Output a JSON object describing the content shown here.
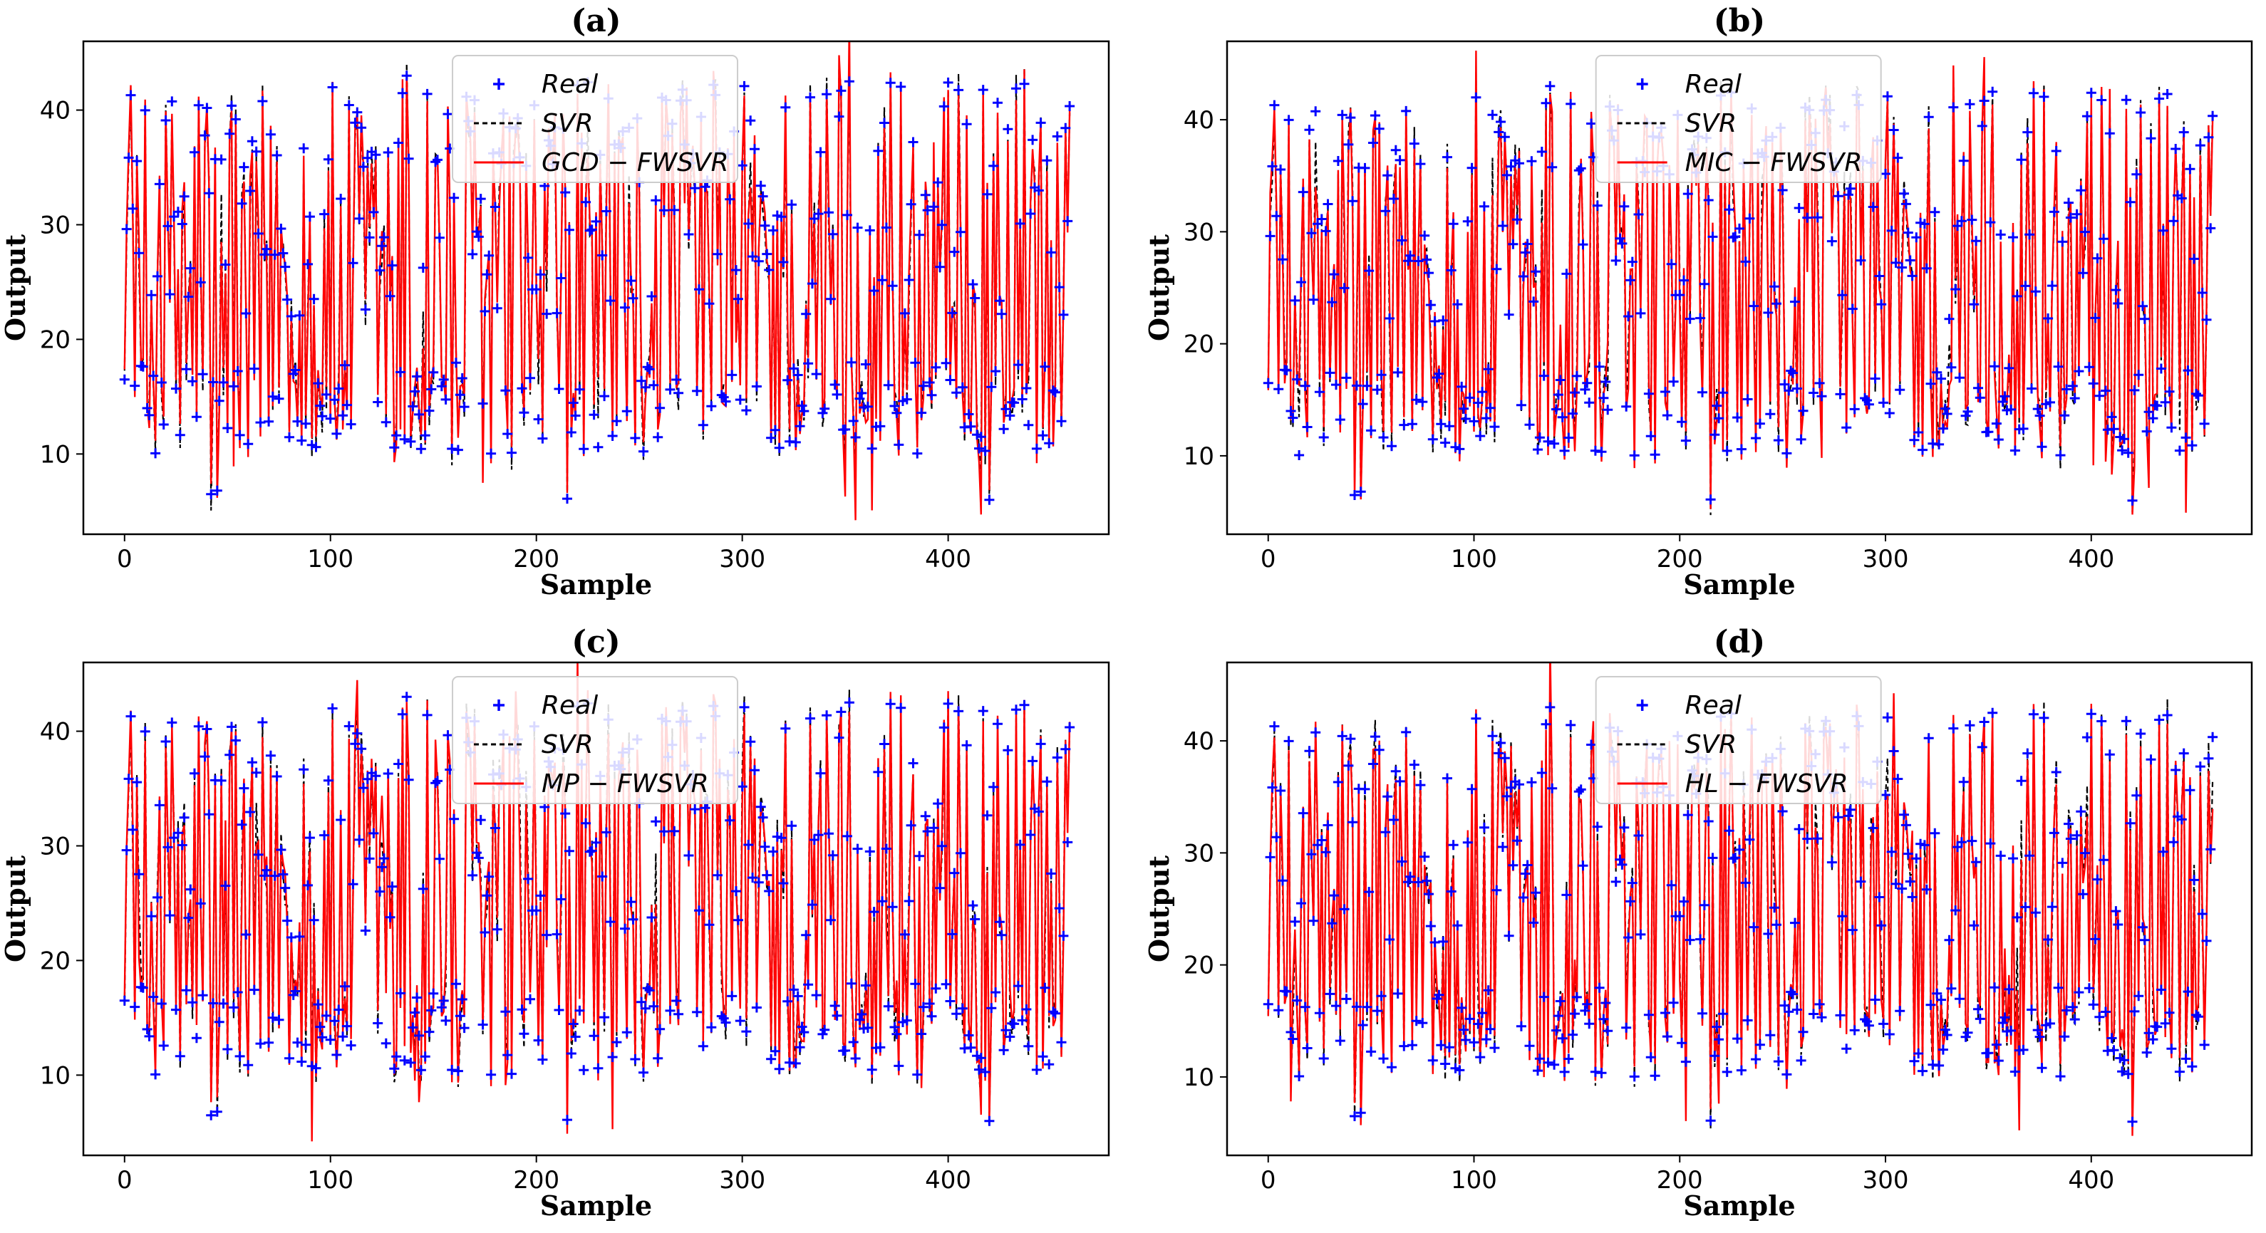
{
  "chart_data": [
    {
      "type": "line",
      "title": "(a)",
      "xlabel": "Sample",
      "ylabel": "Output",
      "xlim": [
        -20,
        478
      ],
      "ylim": [
        3,
        46
      ],
      "xticks": [
        0,
        100,
        200,
        300,
        400
      ],
      "yticks": [
        10,
        20,
        30,
        40
      ],
      "legend_position": "top-center",
      "series": [
        {
          "name": "Real",
          "style": "markers",
          "color": "#0000ff"
        },
        {
          "name": "SVR",
          "style": "dashed",
          "color": "#000000"
        },
        {
          "name": "GCD − FWSVR",
          "style": "solid",
          "color": "#ff0000"
        }
      ],
      "seed_offset": 0
    },
    {
      "type": "line",
      "title": "(b)",
      "xlabel": "Sample",
      "ylabel": "Output",
      "xlim": [
        -20,
        478
      ],
      "ylim": [
        3,
        47
      ],
      "xticks": [
        0,
        100,
        200,
        300,
        400
      ],
      "yticks": [
        10,
        20,
        30,
        40
      ],
      "legend_position": "top-center",
      "series": [
        {
          "name": "Real",
          "style": "markers",
          "color": "#0000ff"
        },
        {
          "name": "SVR",
          "style": "dashed",
          "color": "#000000"
        },
        {
          "name": "MIC − FWSVR",
          "style": "solid",
          "color": "#ff0000"
        }
      ],
      "seed_offset": 1
    },
    {
      "type": "line",
      "title": "(c)",
      "xlabel": "Sample",
      "ylabel": "Output",
      "xlim": [
        -20,
        478
      ],
      "ylim": [
        3,
        46
      ],
      "xticks": [
        0,
        100,
        200,
        300,
        400
      ],
      "yticks": [
        10,
        20,
        30,
        40
      ],
      "legend_position": "top-center",
      "series": [
        {
          "name": "Real",
          "style": "markers",
          "color": "#0000ff"
        },
        {
          "name": "SVR",
          "style": "dashed",
          "color": "#000000"
        },
        {
          "name": "MP − FWSVR",
          "style": "solid",
          "color": "#ff0000"
        }
      ],
      "seed_offset": 2
    },
    {
      "type": "line",
      "title": "(d)",
      "xlabel": "Sample",
      "ylabel": "Output",
      "xlim": [
        -20,
        478
      ],
      "ylim": [
        3,
        47
      ],
      "xticks": [
        0,
        100,
        200,
        300,
        400
      ],
      "yticks": [
        10,
        20,
        30,
        40
      ],
      "legend_position": "top-center",
      "series": [
        {
          "name": "Real",
          "style": "markers",
          "color": "#0000ff"
        },
        {
          "name": "SVR",
          "style": "dashed",
          "color": "#000000"
        },
        {
          "name": "HL − FWSVR",
          "style": "solid",
          "color": "#ff0000"
        }
      ],
      "seed_offset": 3
    }
  ],
  "real_values_sample_count": 460
}
